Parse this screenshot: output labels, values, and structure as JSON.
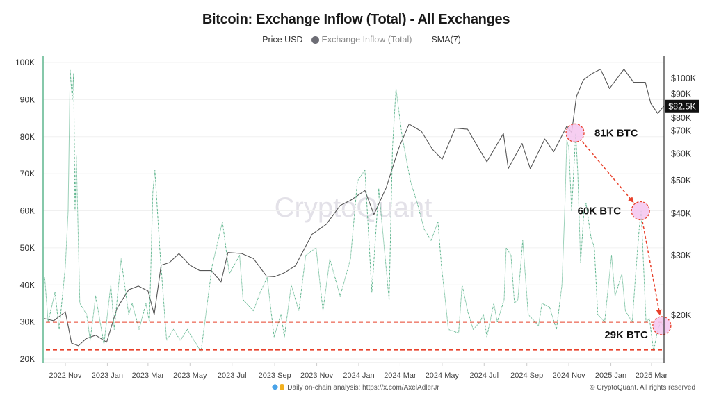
{
  "chart_data": {
    "type": "line",
    "title": "Bitcoin: Exchange Inflow (Total) - All Exchanges",
    "legend": [
      {
        "name": "Price USD",
        "color": "#555555",
        "hidden": false
      },
      {
        "name": "Exchange Inflow (Total)",
        "color": "#6d6d75",
        "hidden": true
      },
      {
        "name": "SMA(7)",
        "color": "#5fb58e",
        "hidden": false
      }
    ],
    "legend_placement": "top-center",
    "x_axis": {
      "type": "date",
      "range": [
        "2022-10-01",
        "2025-03-19"
      ],
      "ticks": [
        {
          "date": "2022-11-01",
          "label": "2022 Nov"
        },
        {
          "date": "2023-01-01",
          "label": "2023 Jan"
        },
        {
          "date": "2023-03-01",
          "label": "2023 Mar"
        },
        {
          "date": "2023-05-01",
          "label": "2023 May"
        },
        {
          "date": "2023-07-01",
          "label": "2023 Jul"
        },
        {
          "date": "2023-09-01",
          "label": "2023 Sep"
        },
        {
          "date": "2023-11-01",
          "label": "2023 Nov"
        },
        {
          "date": "2024-01-01",
          "label": "2024 Jan"
        },
        {
          "date": "2024-03-01",
          "label": "2024 Mar"
        },
        {
          "date": "2024-05-01",
          "label": "2024 May"
        },
        {
          "date": "2024-07-01",
          "label": "2024 Jul"
        },
        {
          "date": "2024-09-01",
          "label": "2024 Sep"
        },
        {
          "date": "2024-11-01",
          "label": "2024 Nov"
        },
        {
          "date": "2025-01-01",
          "label": "2025 Jan"
        },
        {
          "date": "2025-03-01",
          "label": "2025 Mar"
        }
      ]
    },
    "y_left": {
      "scale": "linear",
      "range": [
        20000,
        100000
      ],
      "ticks": [
        {
          "value": 100000,
          "label": "100K"
        },
        {
          "value": 90000,
          "label": "90K"
        },
        {
          "value": 80000,
          "label": "80K"
        },
        {
          "value": 70000,
          "label": "70K"
        },
        {
          "value": 60000,
          "label": "60K"
        },
        {
          "value": 50000,
          "label": "50K"
        },
        {
          "value": 40000,
          "label": "40K"
        },
        {
          "value": 30000,
          "label": "30K"
        },
        {
          "value": 20000,
          "label": "20K"
        }
      ]
    },
    "y_right": {
      "scale": "log",
      "ticks": [
        {
          "value": 100000,
          "label": "$100K"
        },
        {
          "value": 90000,
          "label": "$90K"
        },
        {
          "value": 80000,
          "label": "$80K"
        },
        {
          "value": 70000,
          "label": "$70K"
        },
        {
          "value": 60000,
          "label": "$60K"
        },
        {
          "value": 50000,
          "label": "$50K"
        },
        {
          "value": 40000,
          "label": "$40K"
        },
        {
          "value": 30000,
          "label": "$30K"
        },
        {
          "value": 20000,
          "label": "$20K"
        }
      ],
      "last_value_label": "$82.5K"
    },
    "grid": true,
    "series": [
      {
        "name": "Price USD",
        "axis": "right",
        "color": "#555555",
        "points": [
          [
            "2022-10-01",
            19500
          ],
          [
            "2022-10-15",
            19200
          ],
          [
            "2022-11-01",
            20400
          ],
          [
            "2022-11-10",
            16500
          ],
          [
            "2022-11-20",
            16200
          ],
          [
            "2022-12-01",
            17000
          ],
          [
            "2022-12-15",
            17400
          ],
          [
            "2022-12-31",
            16600
          ],
          [
            "2023-01-15",
            20900
          ],
          [
            "2023-02-01",
            23700
          ],
          [
            "2023-02-15",
            24300
          ],
          [
            "2023-03-01",
            23500
          ],
          [
            "2023-03-10",
            20000
          ],
          [
            "2023-03-20",
            28000
          ],
          [
            "2023-04-01",
            28500
          ],
          [
            "2023-04-15",
            30300
          ],
          [
            "2023-05-01",
            28000
          ],
          [
            "2023-05-15",
            27000
          ],
          [
            "2023-06-01",
            27000
          ],
          [
            "2023-06-15",
            25000
          ],
          [
            "2023-06-25",
            30500
          ],
          [
            "2023-07-15",
            30300
          ],
          [
            "2023-08-01",
            29300
          ],
          [
            "2023-08-20",
            26000
          ],
          [
            "2023-09-01",
            25900
          ],
          [
            "2023-09-15",
            26600
          ],
          [
            "2023-10-01",
            27900
          ],
          [
            "2023-10-25",
            34500
          ],
          [
            "2023-11-15",
            37000
          ],
          [
            "2023-12-05",
            42000
          ],
          [
            "2023-12-20",
            43500
          ],
          [
            "2024-01-10",
            46500
          ],
          [
            "2024-01-23",
            39500
          ],
          [
            "2024-02-10",
            47500
          ],
          [
            "2024-02-28",
            62000
          ],
          [
            "2024-03-14",
            73000
          ],
          [
            "2024-04-01",
            69500
          ],
          [
            "2024-04-17",
            61500
          ],
          [
            "2024-05-01",
            57500
          ],
          [
            "2024-05-20",
            71000
          ],
          [
            "2024-06-07",
            70500
          ],
          [
            "2024-06-25",
            61000
          ],
          [
            "2024-07-05",
            56500
          ],
          [
            "2024-07-29",
            68500
          ],
          [
            "2024-08-05",
            54000
          ],
          [
            "2024-08-25",
            64000
          ],
          [
            "2024-09-06",
            53900
          ],
          [
            "2024-09-27",
            66000
          ],
          [
            "2024-10-10",
            60500
          ],
          [
            "2024-10-29",
            72000
          ],
          [
            "2024-11-05",
            69000
          ],
          [
            "2024-11-12",
            88000
          ],
          [
            "2024-11-22",
            98500
          ],
          [
            "2024-12-05",
            103000
          ],
          [
            "2024-12-17",
            106000
          ],
          [
            "2024-12-30",
            93000
          ],
          [
            "2025-01-20",
            106000
          ],
          [
            "2025-02-03",
            97000
          ],
          [
            "2025-02-20",
            97000
          ],
          [
            "2025-02-28",
            84000
          ],
          [
            "2025-03-10",
            78500
          ],
          [
            "2025-03-19",
            82500
          ]
        ]
      },
      {
        "name": "SMA(7)",
        "axis": "left",
        "color": "#5fb58e",
        "points": [
          [
            "2022-10-02",
            42000
          ],
          [
            "2022-10-07",
            30000
          ],
          [
            "2022-10-17",
            38000
          ],
          [
            "2022-10-23",
            28000
          ],
          [
            "2022-11-01",
            45000
          ],
          [
            "2022-11-05",
            60000
          ],
          [
            "2022-11-08",
            98000
          ],
          [
            "2022-11-11",
            90000
          ],
          [
            "2022-11-13",
            97000
          ],
          [
            "2022-11-15",
            60000
          ],
          [
            "2022-11-17",
            75000
          ],
          [
            "2022-11-22",
            35000
          ],
          [
            "2022-12-02",
            32000
          ],
          [
            "2022-12-07",
            25000
          ],
          [
            "2022-12-15",
            37000
          ],
          [
            "2022-12-27",
            24000
          ],
          [
            "2023-01-06",
            40000
          ],
          [
            "2023-01-11",
            28000
          ],
          [
            "2023-01-21",
            47000
          ],
          [
            "2023-02-01",
            32000
          ],
          [
            "2023-02-06",
            35000
          ],
          [
            "2023-02-16",
            28000
          ],
          [
            "2023-02-26",
            35000
          ],
          [
            "2023-03-03",
            30000
          ],
          [
            "2023-03-08",
            65000
          ],
          [
            "2023-03-11",
            71000
          ],
          [
            "2023-03-18",
            50000
          ],
          [
            "2023-03-28",
            25000
          ],
          [
            "2023-04-07",
            28000
          ],
          [
            "2023-04-17",
            25000
          ],
          [
            "2023-04-27",
            28000
          ],
          [
            "2023-05-17",
            22000
          ],
          [
            "2023-06-02",
            45000
          ],
          [
            "2023-06-17",
            57000
          ],
          [
            "2023-06-27",
            43000
          ],
          [
            "2023-07-12",
            48000
          ],
          [
            "2023-07-17",
            36000
          ],
          [
            "2023-08-01",
            33000
          ],
          [
            "2023-08-11",
            38000
          ],
          [
            "2023-08-21",
            42000
          ],
          [
            "2023-08-31",
            26000
          ],
          [
            "2023-09-10",
            32000
          ],
          [
            "2023-09-15",
            26000
          ],
          [
            "2023-09-25",
            40000
          ],
          [
            "2023-10-06",
            33000
          ],
          [
            "2023-10-16",
            48000
          ],
          [
            "2023-10-31",
            50000
          ],
          [
            "2023-11-10",
            33000
          ],
          [
            "2023-11-20",
            47000
          ],
          [
            "2023-12-05",
            37000
          ],
          [
            "2023-12-20",
            47000
          ],
          [
            "2023-12-30",
            68000
          ],
          [
            "2024-01-10",
            71000
          ],
          [
            "2024-01-20",
            38000
          ],
          [
            "2024-01-30",
            66000
          ],
          [
            "2024-02-14",
            36000
          ],
          [
            "2024-02-19",
            77000
          ],
          [
            "2024-02-24",
            93000
          ],
          [
            "2024-03-04",
            80000
          ],
          [
            "2024-03-16",
            68000
          ],
          [
            "2024-03-26",
            62000
          ],
          [
            "2024-04-05",
            55000
          ],
          [
            "2024-04-15",
            52000
          ],
          [
            "2024-04-25",
            57000
          ],
          [
            "2024-04-30",
            45000
          ],
          [
            "2024-05-05",
            37000
          ],
          [
            "2024-05-10",
            28000
          ],
          [
            "2024-05-25",
            27000
          ],
          [
            "2024-05-30",
            40000
          ],
          [
            "2024-06-07",
            33000
          ],
          [
            "2024-06-15",
            28000
          ],
          [
            "2024-06-25",
            30000
          ],
          [
            "2024-06-30",
            32000
          ],
          [
            "2024-07-05",
            26000
          ],
          [
            "2024-07-15",
            35000
          ],
          [
            "2024-07-20",
            30000
          ],
          [
            "2024-07-30",
            36000
          ],
          [
            "2024-08-02",
            50000
          ],
          [
            "2024-08-09",
            48000
          ],
          [
            "2024-08-14",
            35000
          ],
          [
            "2024-08-19",
            36000
          ],
          [
            "2024-08-26",
            52000
          ],
          [
            "2024-09-03",
            32000
          ],
          [
            "2024-09-18",
            29000
          ],
          [
            "2024-09-23",
            35000
          ],
          [
            "2024-10-04",
            34000
          ],
          [
            "2024-10-14",
            28000
          ],
          [
            "2024-10-22",
            40000
          ],
          [
            "2024-10-26",
            60000
          ],
          [
            "2024-10-29",
            79000
          ],
          [
            "2024-11-01",
            77000
          ],
          [
            "2024-11-05",
            60000
          ],
          [
            "2024-11-11",
            81000
          ],
          [
            "2024-11-14",
            70000
          ],
          [
            "2024-11-18",
            46000
          ],
          [
            "2024-11-23",
            60000
          ],
          [
            "2024-11-26",
            62000
          ],
          [
            "2024-12-03",
            53000
          ],
          [
            "2024-12-08",
            50000
          ],
          [
            "2024-12-13",
            32000
          ],
          [
            "2024-12-23",
            30000
          ],
          [
            "2025-01-02",
            48000
          ],
          [
            "2025-01-07",
            37000
          ],
          [
            "2025-01-17",
            43000
          ],
          [
            "2025-01-22",
            33000
          ],
          [
            "2025-02-01",
            30000
          ],
          [
            "2025-02-06",
            43000
          ],
          [
            "2025-02-11",
            55000
          ],
          [
            "2025-02-14",
            60000
          ],
          [
            "2025-02-21",
            30000
          ],
          [
            "2025-02-26",
            31000
          ],
          [
            "2025-03-04",
            22000
          ],
          [
            "2025-03-09",
            27000
          ],
          [
            "2025-03-14",
            30000
          ],
          [
            "2025-03-18",
            29000
          ]
        ]
      }
    ],
    "annotations": {
      "highlights": [
        {
          "date": "2024-11-10",
          "value": 81000,
          "label": "81K BTC"
        },
        {
          "date": "2025-02-13",
          "value": 60000,
          "label": "60K BTC"
        },
        {
          "date": "2025-03-16",
          "value": 29000,
          "label": "29K BTC"
        }
      ],
      "reference_lines": [
        30000,
        22500
      ],
      "annotation_color": "#e8402a",
      "highlight_fill": "#f4c6ee"
    },
    "watermark": "CryptoQuant"
  },
  "footer": {
    "analysis": "Daily on-chain analysis: https://x.com/AxelAdlerJr",
    "copyright": "© CryptoQuant. All rights reserved"
  }
}
